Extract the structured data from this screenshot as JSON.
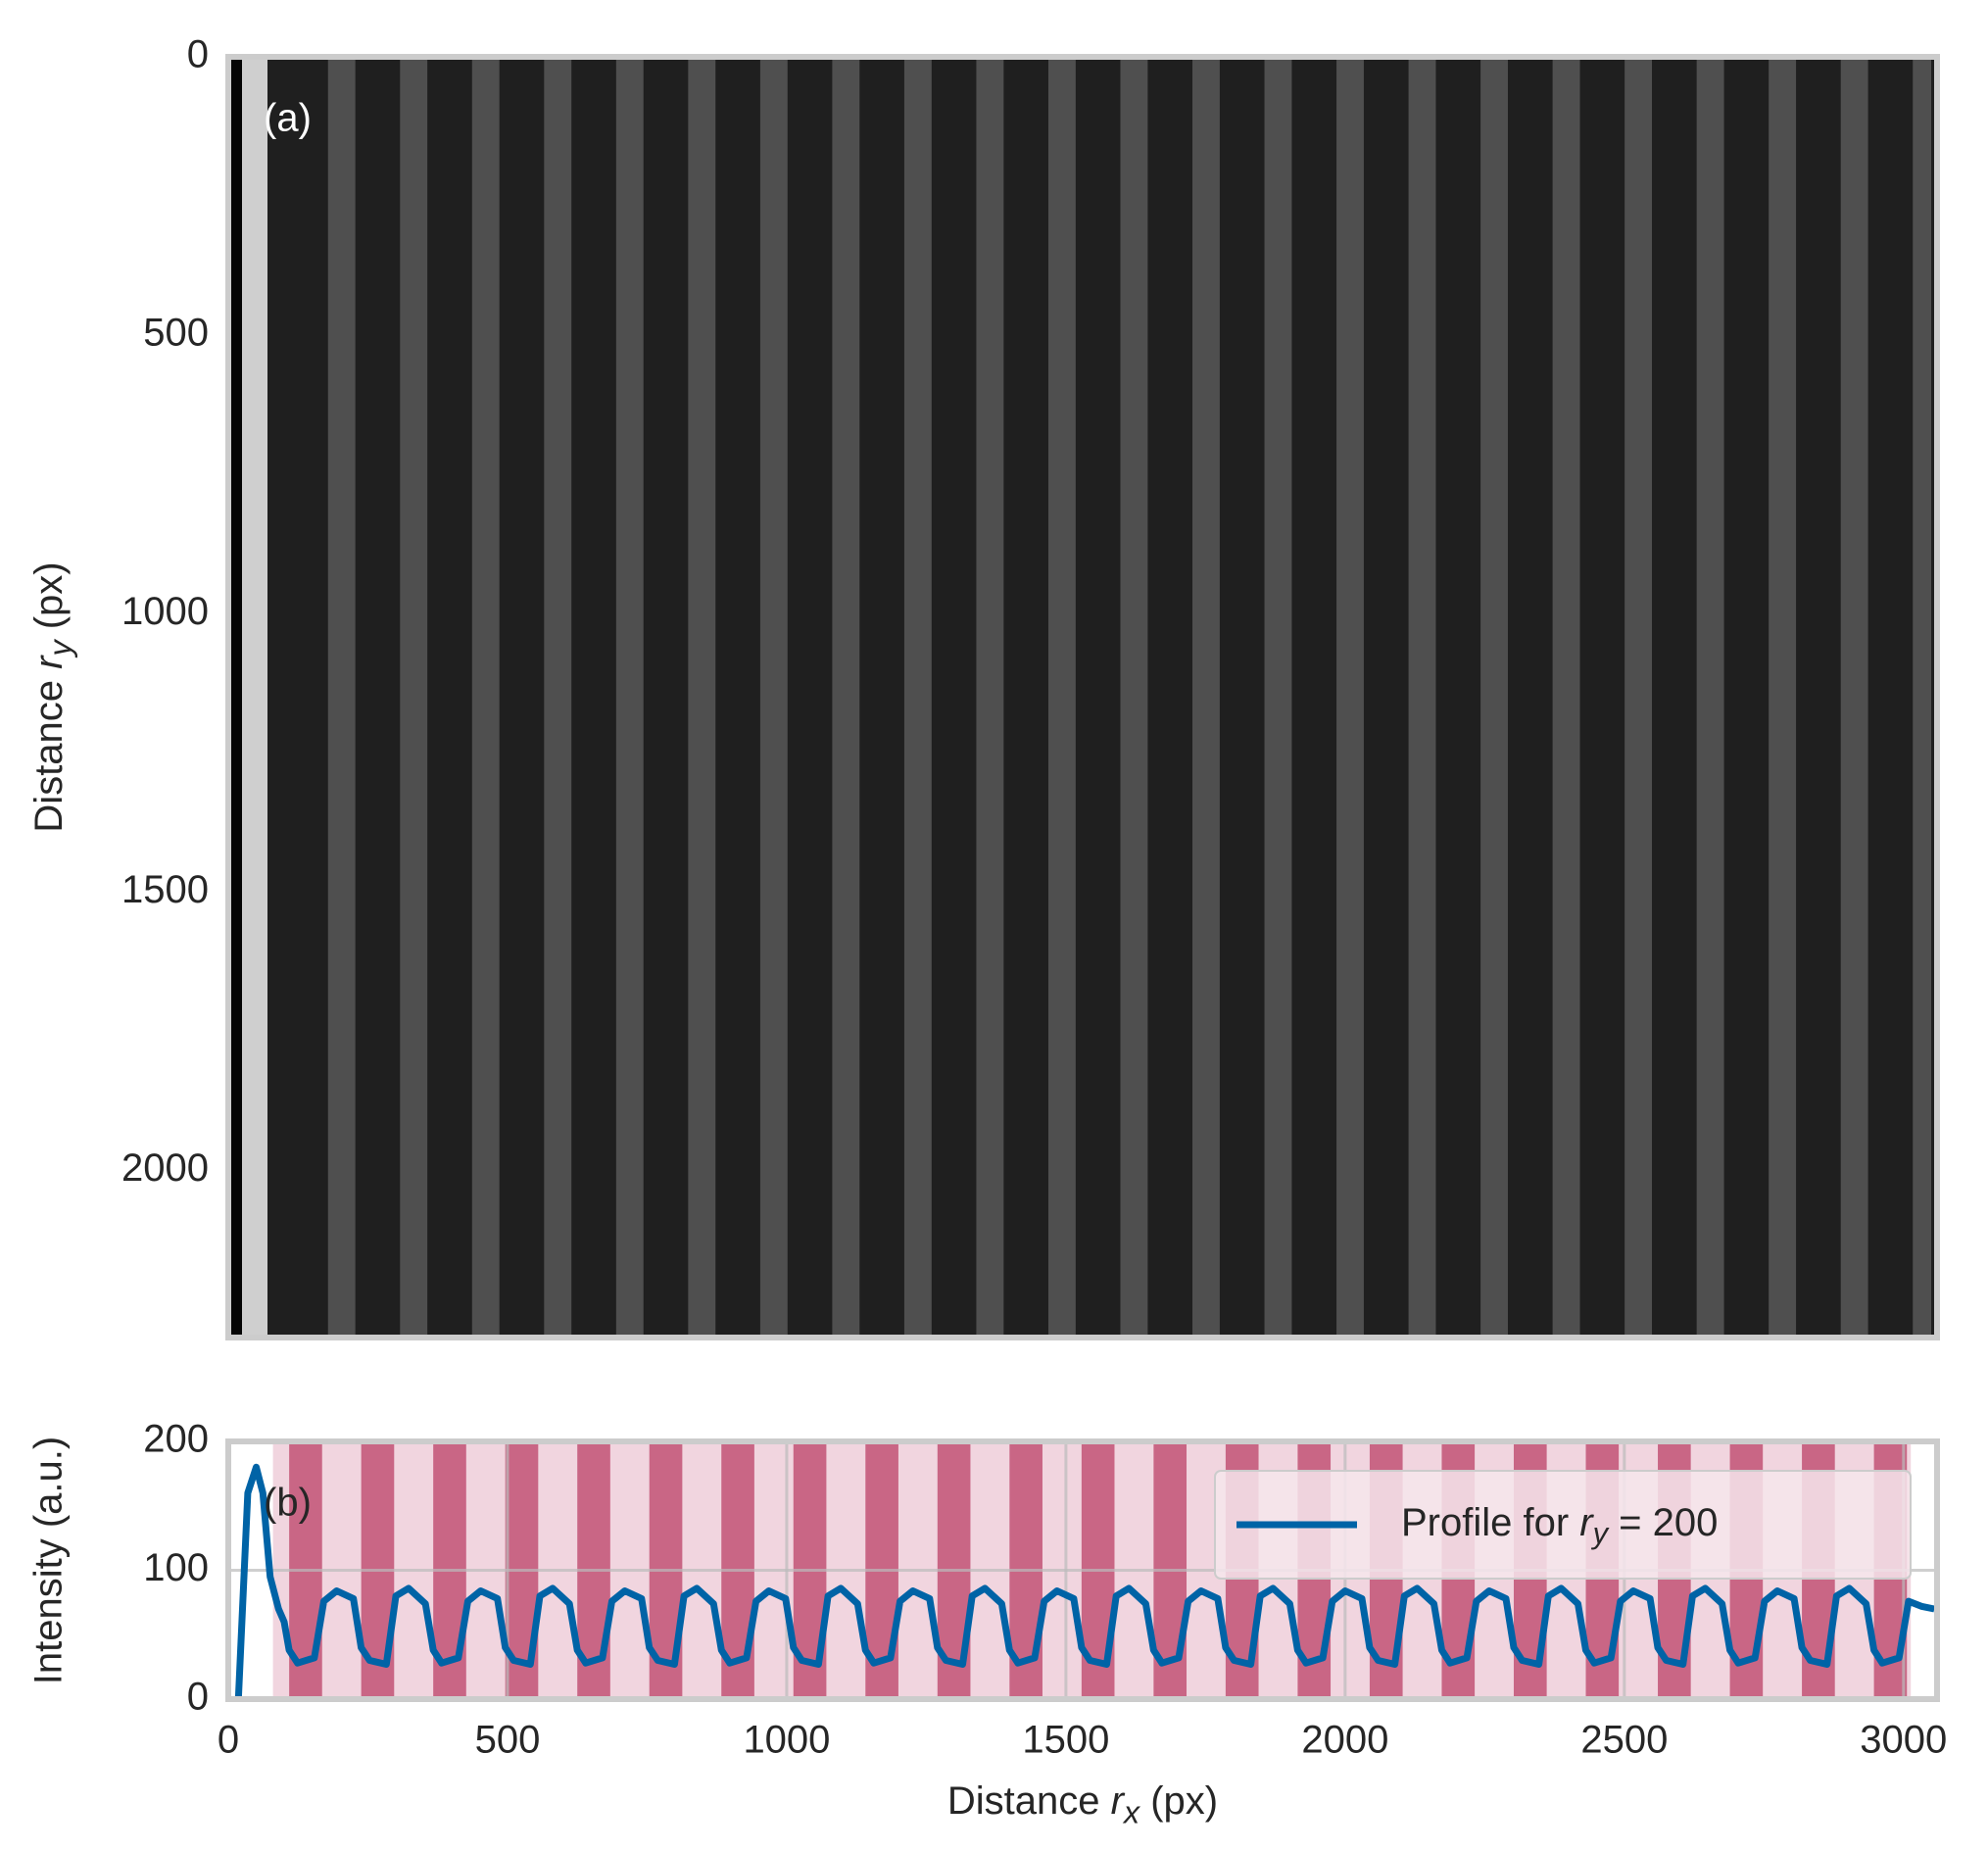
{
  "chart_data": [
    {
      "type": "image",
      "label": "(a)",
      "ylabel": [
        "Distance ",
        "r",
        "y",
        " (px)"
      ],
      "xlim": [
        0,
        3060
      ],
      "ylim": [
        2300,
        0
      ],
      "yticks": [
        0,
        500,
        1000,
        1500,
        2000
      ]
    },
    {
      "type": "line",
      "label": "(b)",
      "xlabel": [
        "Distance ",
        "r",
        "x",
        " (px)"
      ],
      "ylabel": "Intensity (a.u.)",
      "xlim": [
        0,
        3060
      ],
      "ylim": [
        0,
        200
      ],
      "xticks": [
        0,
        500,
        1000,
        1500,
        2000,
        2500,
        3000
      ],
      "yticks": [
        0,
        100,
        200
      ],
      "grid": true,
      "legend": "upper right",
      "span": [
        80,
        3013
      ],
      "span_color": "#f1d5df",
      "band_color": "#c45a7b",
      "bands": [
        [
          109,
          168
        ],
        [
          238,
          297
        ],
        [
          367,
          426
        ],
        [
          496,
          555
        ],
        [
          625,
          684
        ],
        [
          754,
          813
        ],
        [
          883,
          942
        ],
        [
          1012,
          1071
        ],
        [
          1141,
          1200
        ],
        [
          1270,
          1329
        ],
        [
          1399,
          1458
        ],
        [
          1528,
          1587
        ],
        [
          1657,
          1716
        ],
        [
          1786,
          1845
        ],
        [
          1915,
          1974
        ],
        [
          2044,
          2103
        ],
        [
          2173,
          2232
        ],
        [
          2302,
          2361
        ],
        [
          2431,
          2490
        ],
        [
          2560,
          2619
        ],
        [
          2689,
          2748
        ],
        [
          2818,
          2877
        ],
        [
          2947,
          3006
        ]
      ],
      "x": [
        18,
        35,
        50,
        62,
        75,
        90,
        100,
        109,
        124,
        154,
        171,
        194,
        224,
        238,
        253,
        283,
        300,
        323,
        353,
        367,
        382,
        412,
        429,
        452,
        482,
        496,
        511,
        541,
        558,
        581,
        611,
        625,
        640,
        670,
        687,
        710,
        740,
        754,
        769,
        799,
        816,
        839,
        869,
        883,
        898,
        928,
        945,
        968,
        998,
        1012,
        1027,
        1057,
        1074,
        1097,
        1127,
        1141,
        1156,
        1186,
        1203,
        1226,
        1256,
        1270,
        1285,
        1315,
        1332,
        1355,
        1385,
        1399,
        1414,
        1444,
        1461,
        1484,
        1514,
        1528,
        1543,
        1573,
        1590,
        1613,
        1643,
        1657,
        1672,
        1702,
        1719,
        1742,
        1772,
        1786,
        1801,
        1831,
        1848,
        1871,
        1901,
        1915,
        1930,
        1960,
        1977,
        2000,
        2030,
        2044,
        2059,
        2089,
        2106,
        2129,
        2159,
        2173,
        2188,
        2218,
        2235,
        2258,
        2288,
        2302,
        2317,
        2347,
        2364,
        2387,
        2417,
        2431,
        2446,
        2476,
        2493,
        2516,
        2546,
        2560,
        2575,
        2605,
        2622,
        2645,
        2675,
        2689,
        2704,
        2734,
        2751,
        2774,
        2804,
        2818,
        2833,
        2863,
        2880,
        2903,
        2933,
        2947,
        2962,
        2992,
        3009,
        3032,
        3055
      ],
      "series": [
        {
          "name": [
            "Profile for ",
            "r",
            "y",
            " = 200"
          ],
          "color": "#0063a6",
          "values": [
            0,
            160,
            180,
            160,
            95,
            70,
            60,
            38,
            28,
            32,
            76,
            84,
            78,
            40,
            30,
            27,
            80,
            86,
            74,
            38,
            28,
            32,
            76,
            84,
            78,
            40,
            30,
            27,
            80,
            86,
            74,
            38,
            28,
            32,
            76,
            84,
            78,
            40,
            30,
            27,
            80,
            86,
            74,
            38,
            28,
            32,
            76,
            84,
            78,
            40,
            30,
            27,
            80,
            86,
            74,
            38,
            28,
            32,
            76,
            84,
            78,
            40,
            30,
            27,
            80,
            86,
            74,
            38,
            28,
            32,
            76,
            84,
            78,
            40,
            30,
            27,
            80,
            86,
            74,
            38,
            28,
            32,
            76,
            84,
            78,
            40,
            30,
            27,
            80,
            86,
            74,
            38,
            28,
            32,
            76,
            84,
            78,
            40,
            30,
            27,
            80,
            86,
            74,
            38,
            28,
            32,
            76,
            84,
            78,
            40,
            30,
            27,
            80,
            86,
            74,
            38,
            28,
            32,
            76,
            84,
            78,
            40,
            30,
            27,
            80,
            86,
            74,
            38,
            28,
            32,
            76,
            84,
            78,
            40,
            30,
            27,
            80,
            86,
            74,
            38,
            28,
            32,
            76,
            72,
            70
          ]
        }
      ]
    }
  ]
}
